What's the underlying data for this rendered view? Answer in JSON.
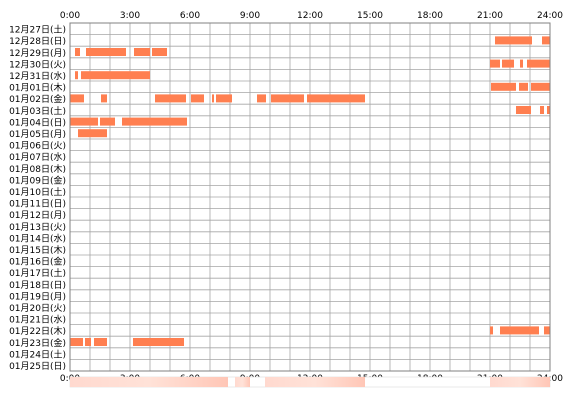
{
  "colors": {
    "bar": "#ff7f50",
    "grid": "#a6a6a6",
    "frame": "#808080",
    "background": "#ffffff",
    "summary_base": "#ffffff",
    "summary_max": "#ff9a72"
  },
  "chart_data": {
    "type": "timeline",
    "x_unit": "hours",
    "xlim": [
      0,
      24
    ],
    "x_ticks": [
      "0:00",
      "3:00",
      "6:00",
      "9:00",
      "12:00",
      "15:00",
      "18:00",
      "21:00",
      "24:00"
    ],
    "grid": true,
    "days": [
      {
        "label": "12月27日(土)",
        "segments": []
      },
      {
        "label": "12月28日(日)",
        "segments": [
          [
            21.25,
            23.1
          ],
          [
            23.6,
            24
          ]
        ]
      },
      {
        "label": "12月29日(月)",
        "segments": [
          [
            0.25,
            0.5
          ],
          [
            0.8,
            2.8
          ],
          [
            3.2,
            4.0
          ],
          [
            4.1,
            4.85
          ]
        ]
      },
      {
        "label": "12月30日(火)",
        "segments": [
          [
            21.0,
            21.5
          ],
          [
            21.6,
            22.2
          ],
          [
            22.5,
            22.65
          ],
          [
            22.85,
            24
          ]
        ]
      },
      {
        "label": "12月31日(水)",
        "segments": [
          [
            0.25,
            0.4
          ],
          [
            0.55,
            4.0
          ]
        ]
      },
      {
        "label": "01月01日(木)",
        "segments": [
          [
            21.05,
            22.3
          ],
          [
            22.45,
            22.9
          ],
          [
            23.05,
            24
          ]
        ]
      },
      {
        "label": "01月02日(金)",
        "segments": [
          [
            0.0,
            0.7
          ],
          [
            1.55,
            1.85
          ],
          [
            4.25,
            5.8
          ],
          [
            6.05,
            6.7
          ],
          [
            7.1,
            7.2
          ],
          [
            7.3,
            8.1
          ],
          [
            9.35,
            9.8
          ],
          [
            10.05,
            11.7
          ],
          [
            11.85,
            14.75
          ]
        ]
      },
      {
        "label": "01月03日(土)",
        "segments": [
          [
            22.3,
            23.05
          ],
          [
            23.5,
            23.7
          ],
          [
            23.85,
            24
          ]
        ]
      },
      {
        "label": "01月04日(日)",
        "segments": [
          [
            0.0,
            1.4
          ],
          [
            1.5,
            2.25
          ],
          [
            2.6,
            5.85
          ]
        ]
      },
      {
        "label": "01月05日(月)",
        "segments": [
          [
            0.4,
            1.85
          ]
        ]
      },
      {
        "label": "01月06日(火)",
        "segments": []
      },
      {
        "label": "01月07日(水)",
        "segments": []
      },
      {
        "label": "01月08日(木)",
        "segments": []
      },
      {
        "label": "01月09日(金)",
        "segments": []
      },
      {
        "label": "01月10日(土)",
        "segments": []
      },
      {
        "label": "01月11日(日)",
        "segments": []
      },
      {
        "label": "01月12日(月)",
        "segments": []
      },
      {
        "label": "01月13日(火)",
        "segments": []
      },
      {
        "label": "01月14日(水)",
        "segments": []
      },
      {
        "label": "01月15日(木)",
        "segments": []
      },
      {
        "label": "01月16日(金)",
        "segments": []
      },
      {
        "label": "01月17日(土)",
        "segments": []
      },
      {
        "label": "01月18日(日)",
        "segments": []
      },
      {
        "label": "01月19日(月)",
        "segments": []
      },
      {
        "label": "01月20日(火)",
        "segments": []
      },
      {
        "label": "01月21日(水)",
        "segments": []
      },
      {
        "label": "01月22日(木)",
        "segments": [
          [
            21.0,
            21.15
          ],
          [
            21.5,
            23.45
          ],
          [
            23.7,
            24
          ]
        ]
      },
      {
        "label": "01月23日(金)",
        "segments": [
          [
            0.0,
            0.65
          ],
          [
            0.75,
            1.05
          ],
          [
            1.2,
            1.85
          ],
          [
            3.15,
            5.7
          ]
        ]
      },
      {
        "label": "01月24日(土)",
        "segments": []
      },
      {
        "label": "01月25日(日)",
        "segments": []
      }
    ],
    "summary": {
      "segments": [
        [
          0.0,
          7.9
        ],
        [
          8.25,
          9.0
        ],
        [
          9.75,
          14.75
        ],
        [
          21.0,
          24
        ]
      ]
    }
  }
}
